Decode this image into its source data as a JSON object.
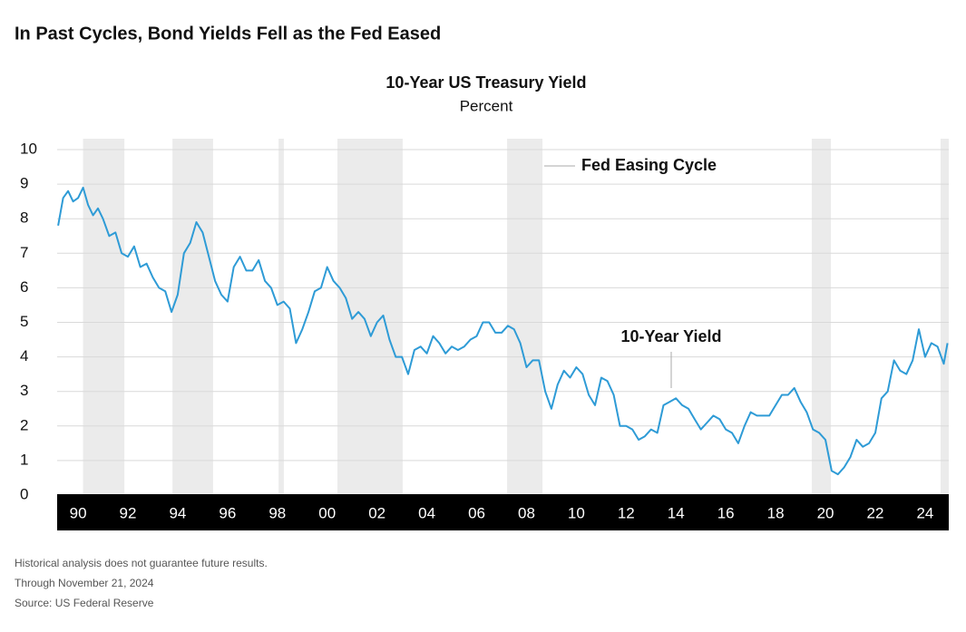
{
  "heading": "In Past Cycles, Bond Yields Fell as the Fed Eased",
  "chart_data": {
    "type": "line",
    "title": "10-Year US Treasury Yield",
    "subtitle": "Percent",
    "x": [
      1989.2,
      1989.4,
      1989.6,
      1989.8,
      1990.0,
      1990.2,
      1990.4,
      1990.6,
      1990.8,
      1991.0,
      1991.25,
      1991.5,
      1991.75,
      1992.0,
      1992.25,
      1992.5,
      1992.75,
      1993.0,
      1993.25,
      1993.5,
      1993.75,
      1994.0,
      1994.25,
      1994.5,
      1994.75,
      1995.0,
      1995.25,
      1995.5,
      1995.75,
      1996.0,
      1996.25,
      1996.5,
      1996.75,
      1997.0,
      1997.25,
      1997.5,
      1997.75,
      1998.0,
      1998.25,
      1998.5,
      1998.75,
      1999.0,
      1999.25,
      1999.5,
      1999.75,
      2000.0,
      2000.25,
      2000.5,
      2000.75,
      2001.0,
      2001.25,
      2001.5,
      2001.75,
      2002.0,
      2002.25,
      2002.5,
      2002.75,
      2003.0,
      2003.25,
      2003.5,
      2003.75,
      2004.0,
      2004.25,
      2004.5,
      2004.75,
      2005.0,
      2005.25,
      2005.5,
      2005.75,
      2006.0,
      2006.25,
      2006.5,
      2006.75,
      2007.0,
      2007.25,
      2007.5,
      2007.75,
      2008.0,
      2008.25,
      2008.5,
      2008.75,
      2009.0,
      2009.25,
      2009.5,
      2009.75,
      2010.0,
      2010.25,
      2010.5,
      2010.75,
      2011.0,
      2011.25,
      2011.5,
      2011.75,
      2012.0,
      2012.25,
      2012.5,
      2012.75,
      2013.0,
      2013.25,
      2013.5,
      2013.75,
      2014.0,
      2014.25,
      2014.5,
      2014.75,
      2015.0,
      2015.25,
      2015.5,
      2015.75,
      2016.0,
      2016.25,
      2016.5,
      2016.75,
      2017.0,
      2017.25,
      2017.5,
      2017.75,
      2018.0,
      2018.25,
      2018.5,
      2018.75,
      2019.0,
      2019.25,
      2019.5,
      2019.75,
      2020.0,
      2020.25,
      2020.5,
      2020.75,
      2021.0,
      2021.25,
      2021.5,
      2021.75,
      2022.0,
      2022.25,
      2022.5,
      2022.75,
      2023.0,
      2023.25,
      2023.5,
      2023.75,
      2024.0,
      2024.25,
      2024.5,
      2024.75,
      2024.9
    ],
    "series": [
      {
        "name": "10-Year Yield",
        "color": "#2e9bd6",
        "values": [
          7.8,
          8.6,
          8.8,
          8.5,
          8.6,
          8.9,
          8.4,
          8.1,
          8.3,
          8.0,
          7.5,
          7.6,
          7.0,
          6.9,
          7.2,
          6.6,
          6.7,
          6.3,
          6.0,
          5.9,
          5.3,
          5.8,
          7.0,
          7.3,
          7.9,
          7.6,
          6.9,
          6.2,
          5.8,
          5.6,
          6.6,
          6.9,
          6.5,
          6.5,
          6.8,
          6.2,
          6.0,
          5.5,
          5.6,
          5.4,
          4.4,
          4.8,
          5.3,
          5.9,
          6.0,
          6.6,
          6.2,
          6.0,
          5.7,
          5.1,
          5.3,
          5.1,
          4.6,
          5.0,
          5.2,
          4.5,
          4.0,
          4.0,
          3.5,
          4.2,
          4.3,
          4.1,
          4.6,
          4.4,
          4.1,
          4.3,
          4.2,
          4.3,
          4.5,
          4.6,
          5.0,
          5.0,
          4.7,
          4.7,
          4.9,
          4.8,
          4.4,
          3.7,
          3.9,
          3.9,
          3.0,
          2.5,
          3.2,
          3.6,
          3.4,
          3.7,
          3.5,
          2.9,
          2.6,
          3.4,
          3.3,
          2.9,
          2.0,
          2.0,
          1.9,
          1.6,
          1.7,
          1.9,
          1.8,
          2.6,
          2.7,
          2.8,
          2.6,
          2.5,
          2.2,
          1.9,
          2.1,
          2.3,
          2.2,
          1.9,
          1.8,
          1.5,
          2.0,
          2.4,
          2.3,
          2.3,
          2.3,
          2.6,
          2.9,
          2.9,
          3.1,
          2.7,
          2.4,
          1.9,
          1.8,
          1.6,
          0.7,
          0.6,
          0.8,
          1.1,
          1.6,
          1.4,
          1.5,
          1.8,
          2.8,
          3.0,
          3.9,
          3.6,
          3.5,
          3.9,
          4.8,
          4.0,
          4.4,
          4.3,
          3.8,
          4.4
        ]
      }
    ],
    "shaded_regions": {
      "name": "Fed Easing Cycle",
      "color": "#ebebeb",
      "ranges": [
        [
          1990.2,
          1991.86
        ],
        [
          1993.79,
          1995.42
        ],
        [
          1998.05,
          1998.26
        ],
        [
          2000.41,
          2003.03
        ],
        [
          2007.22,
          2008.64
        ],
        [
          2019.45,
          2020.22
        ],
        [
          2024.62,
          2024.95
        ]
      ]
    },
    "xlim": [
      1989.16,
      2024.95
    ],
    "ylim": [
      0,
      10
    ],
    "xticks": [
      {
        "value": 1990,
        "label": "90"
      },
      {
        "value": 1992,
        "label": "92"
      },
      {
        "value": 1994,
        "label": "94"
      },
      {
        "value": 1996,
        "label": "96"
      },
      {
        "value": 1998,
        "label": "98"
      },
      {
        "value": 2000,
        "label": "00"
      },
      {
        "value": 2002,
        "label": "02"
      },
      {
        "value": 2004,
        "label": "04"
      },
      {
        "value": 2006,
        "label": "06"
      },
      {
        "value": 2008,
        "label": "08"
      },
      {
        "value": 2010,
        "label": "10"
      },
      {
        "value": 2012,
        "label": "12"
      },
      {
        "value": 2014,
        "label": "14"
      },
      {
        "value": 2016,
        "label": "16"
      },
      {
        "value": 2018,
        "label": "18"
      },
      {
        "value": 2020,
        "label": "20"
      },
      {
        "value": 2022,
        "label": "22"
      },
      {
        "value": 2024,
        "label": "24"
      }
    ],
    "yticks": [
      0,
      1,
      2,
      3,
      4,
      5,
      6,
      7,
      8,
      9,
      10
    ],
    "grid": true
  },
  "notes": [
    "Historical analysis does not guarantee future results.",
    "Through November 21, 2024",
    "Source: US Federal Reserve"
  ]
}
